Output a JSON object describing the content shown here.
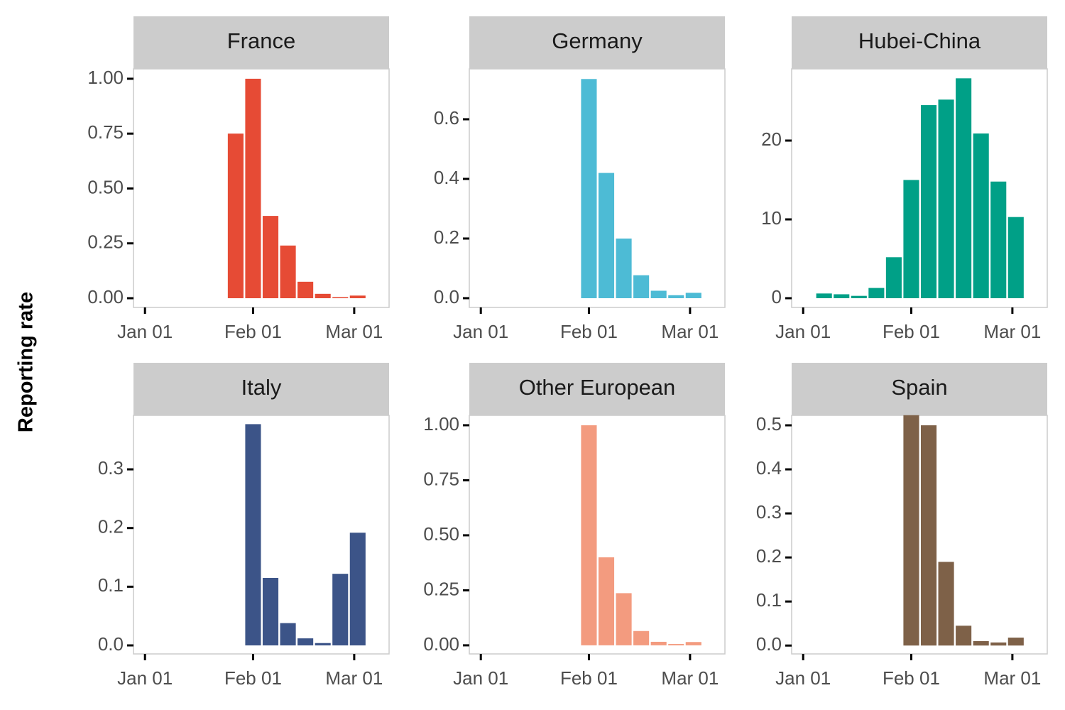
{
  "ylabel": "Reporting rate",
  "chart_data": [
    {
      "type": "bar",
      "title": "France",
      "color": "#E64B35",
      "x": [
        26,
        31,
        36,
        41,
        46,
        51,
        56,
        61
      ],
      "values": [
        0.75,
        1.0,
        0.375,
        0.24,
        0.075,
        0.02,
        0.005,
        0.012
      ],
      "xlim": [
        -3.3,
        70
      ],
      "ylim": [
        -0.042,
        1.045
      ],
      "xticks": [
        {
          "value": 0,
          "label": "Jan 01"
        },
        {
          "value": 31,
          "label": "Feb 01"
        },
        {
          "value": 60,
          "label": "Mar 01"
        }
      ],
      "yticks": [
        {
          "value": 0,
          "label": "0.00"
        },
        0.25,
        {
          "value": 0.5,
          "label": "0.50"
        },
        0.75,
        {
          "value": 1,
          "label": "1.00"
        }
      ]
    },
    {
      "type": "bar",
      "title": "Germany",
      "color": "#4DBBD5",
      "x": [
        31,
        36,
        41,
        46,
        51,
        56,
        61
      ],
      "values": [
        0.735,
        0.42,
        0.2,
        0.077,
        0.025,
        0.01,
        0.018
      ],
      "xlim": [
        -3.3,
        70
      ],
      "ylim": [
        -0.031,
        0.769
      ],
      "xticks": [
        {
          "value": 0,
          "label": "Jan 01"
        },
        {
          "value": 31,
          "label": "Feb 01"
        },
        {
          "value": 60,
          "label": "Mar 01"
        }
      ],
      "yticks": [
        {
          "value": 0,
          "label": "0.0"
        },
        0.2,
        0.4,
        0.6
      ]
    },
    {
      "type": "bar",
      "title": "Hubei-China",
      "color": "#00A087",
      "x": [
        6,
        11,
        16,
        21,
        26,
        31,
        36,
        41,
        46,
        51,
        56,
        61
      ],
      "values": [
        0.6,
        0.5,
        0.3,
        1.3,
        5.2,
        15,
        24.5,
        25.2,
        27.9,
        20.9,
        14.8,
        10.3
      ],
      "xlim": [
        -3.3,
        70
      ],
      "ylim": [
        -1.17,
        29.1
      ],
      "xticks": [
        {
          "value": 0,
          "label": "Jan 01"
        },
        {
          "value": 31,
          "label": "Feb 01"
        },
        {
          "value": 60,
          "label": "Mar 01"
        }
      ],
      "yticks": [
        0,
        10,
        20
      ]
    },
    {
      "type": "bar",
      "title": "Italy",
      "color": "#3C5488",
      "x": [
        31,
        36,
        41,
        46,
        51,
        56,
        61
      ],
      "values": [
        0.377,
        0.115,
        0.038,
        0.012,
        0.004,
        0.122,
        0.192
      ],
      "xlim": [
        -3.3,
        70
      ],
      "ylim": [
        -0.0145,
        0.392
      ],
      "xticks": [
        {
          "value": 0,
          "label": "Jan 01"
        },
        {
          "value": 31,
          "label": "Feb 01"
        },
        {
          "value": 60,
          "label": "Mar 01"
        }
      ],
      "yticks": [
        {
          "value": 0,
          "label": "0.0"
        },
        0.1,
        0.2,
        0.3
      ]
    },
    {
      "type": "bar",
      "title": "Other European",
      "color": "#F39B7F",
      "x": [
        31,
        36,
        41,
        46,
        51,
        56,
        61
      ],
      "values": [
        1.0,
        0.4,
        0.237,
        0.065,
        0.016,
        0.006,
        0.015
      ],
      "xlim": [
        -3.3,
        70
      ],
      "ylim": [
        -0.039,
        1.045
      ],
      "xticks": [
        {
          "value": 0,
          "label": "Jan 01"
        },
        {
          "value": 31,
          "label": "Feb 01"
        },
        {
          "value": 60,
          "label": "Mar 01"
        }
      ],
      "yticks": [
        {
          "value": 0,
          "label": "0.00"
        },
        0.25,
        {
          "value": 0.5,
          "label": "0.50"
        },
        0.75,
        {
          "value": 1,
          "label": "1.00"
        }
      ]
    },
    {
      "type": "bar",
      "title": "Spain",
      "color": "#7E6148",
      "x": [
        31,
        36,
        41,
        46,
        51,
        56,
        61
      ],
      "values": [
        0.523,
        0.5,
        0.19,
        0.045,
        0.01,
        0.007,
        0.018
      ],
      "xlim": [
        -3.3,
        70
      ],
      "ylim": [
        -0.019,
        0.5226
      ],
      "xticks": [
        {
          "value": 0,
          "label": "Jan 01"
        },
        {
          "value": 31,
          "label": "Feb 01"
        },
        {
          "value": 60,
          "label": "Mar 01"
        }
      ],
      "yticks": [
        {
          "value": 0,
          "label": "0.0"
        },
        0.1,
        0.2,
        0.3,
        0.4,
        0.5
      ]
    }
  ]
}
